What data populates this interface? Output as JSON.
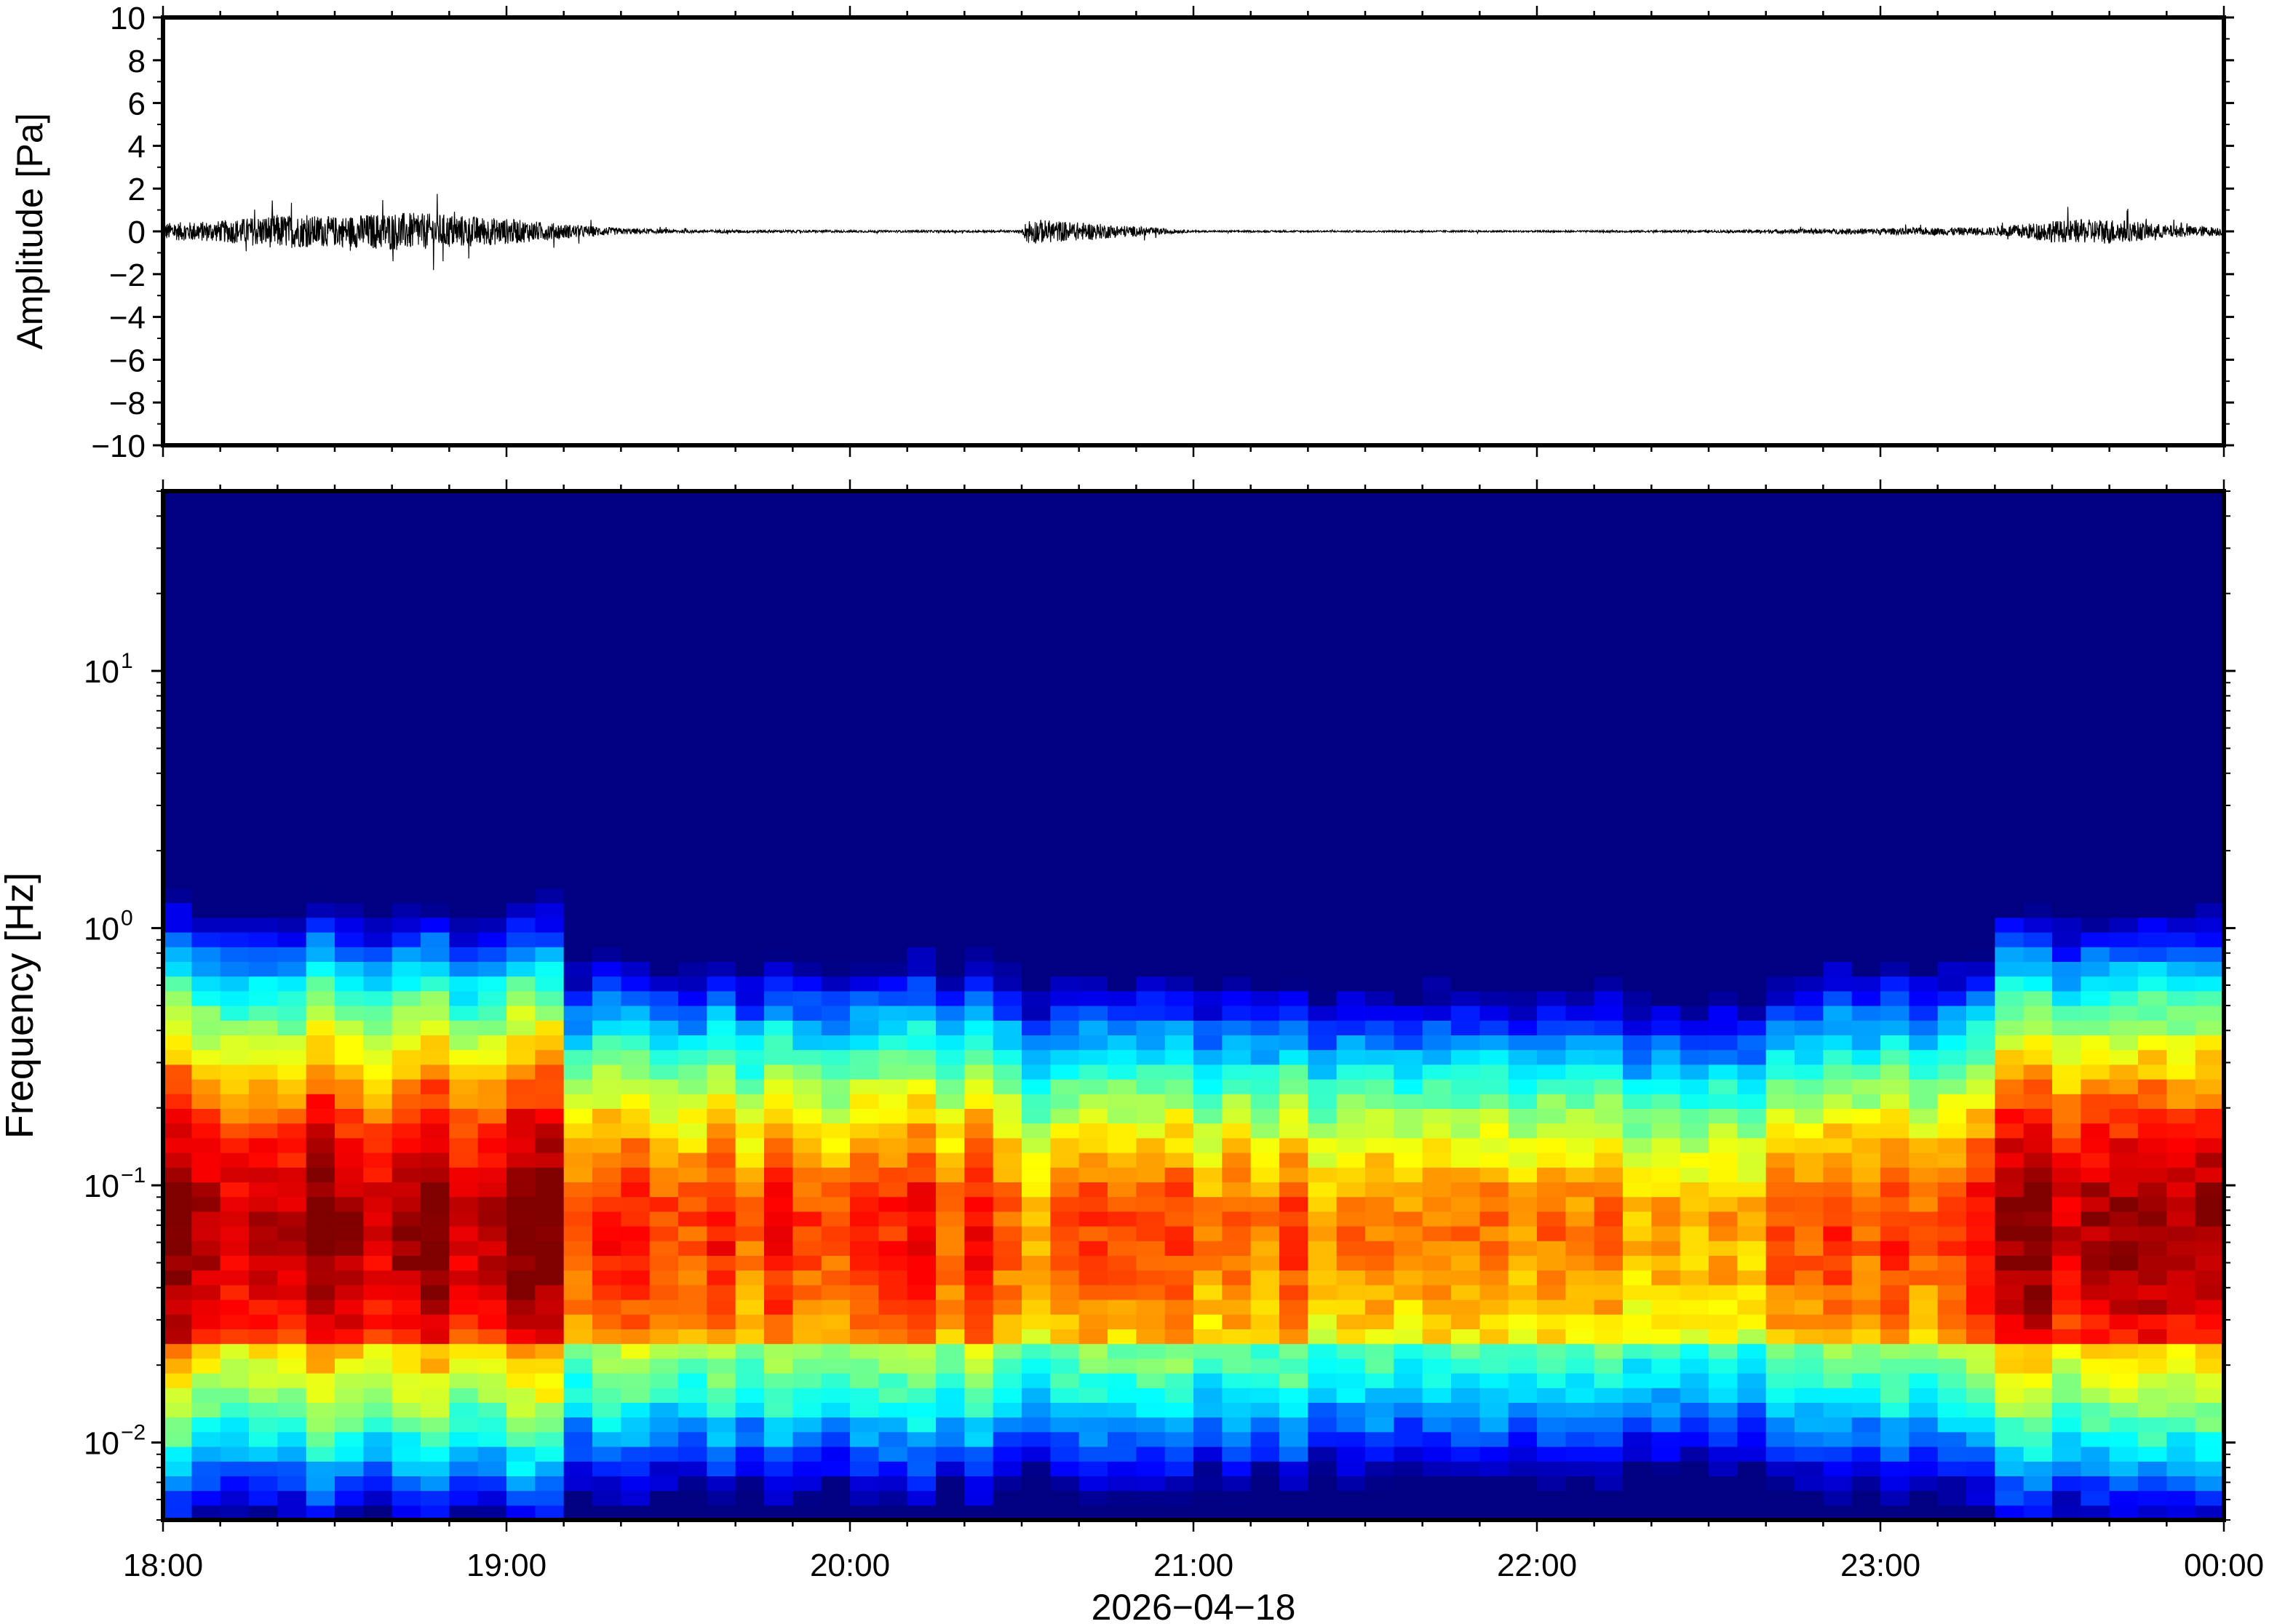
{
  "chart_data": [
    {
      "type": "line",
      "panel": "waveform",
      "ylabel": "Amplitude [Pa]",
      "ylim": [
        -10,
        10
      ],
      "yticks": [
        10,
        8,
        6,
        4,
        2,
        0,
        -2,
        -4,
        -6,
        -8,
        -10
      ],
      "ytick_labels": [
        "10",
        "8",
        "6",
        "4",
        "2",
        "0",
        "−2",
        "−4",
        "−6",
        "−8",
        "−10"
      ],
      "xlim": [
        "18:00",
        "00:00"
      ],
      "series": [
        {
          "x": [
            "18:00",
            "18:10",
            "18:20",
            "18:30",
            "18:40",
            "18:50",
            "19:00",
            "19:10",
            "19:20",
            "19:30",
            "20:00",
            "20:30",
            "20:31",
            "21:00",
            "22:00",
            "22:30",
            "23:00",
            "23:20",
            "23:30",
            "23:40",
            "23:50",
            "00:00"
          ],
          "envelope": [
            0.4,
            0.5,
            0.8,
            0.7,
            0.9,
            0.8,
            0.6,
            0.35,
            0.15,
            0.08,
            0.05,
            0.05,
            0.6,
            0.04,
            0.04,
            0.05,
            0.15,
            0.2,
            0.5,
            0.6,
            0.3,
            0.2
          ]
        }
      ],
      "color": "#000000"
    },
    {
      "type": "heatmap",
      "panel": "spectrogram",
      "ylabel": "Frequency [Hz]",
      "xlabel": "2026−04−18",
      "yscale": "log",
      "ylim": [
        0.005,
        50
      ],
      "yticks": [
        {
          "base": "10",
          "exp": "1",
          "value": 10
        },
        {
          "base": "10",
          "exp": "0",
          "value": 1
        },
        {
          "base": "10",
          "exp": "−1",
          "value": 0.1
        },
        {
          "base": "10",
          "exp": "−2",
          "value": 0.01
        }
      ],
      "xticks": [
        "18:00",
        "19:00",
        "20:00",
        "21:00",
        "22:00",
        "23:00",
        "00:00"
      ],
      "colormap": "jet",
      "time_segments_hours": [
        0,
        1.2,
        2.5,
        4.0,
        4.85,
        5.3,
        6.0
      ],
      "segment_activity": [
        0.95,
        0.55,
        0.35,
        0.3,
        0.55,
        0.9
      ]
    }
  ]
}
